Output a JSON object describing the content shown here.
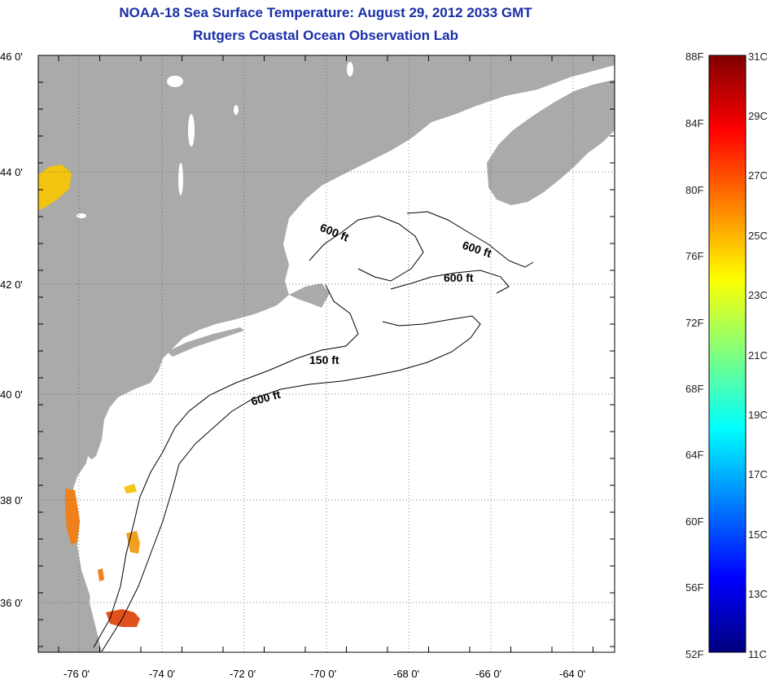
{
  "header": {
    "title": "NOAA-18 Sea Surface Temperature:  August 29, 2012 2033 GMT",
    "subtitle": "Rutgers Coastal Ocean Observation Lab"
  },
  "map": {
    "lat_ticks": [
      "46 0'",
      "44 0'",
      "42 0'",
      "40 0'",
      "38 0'",
      "36 0'"
    ],
    "lon_ticks": [
      "-76 0'",
      "-74 0'",
      "-72 0'",
      "-70 0'",
      "-68 0'",
      "-66 0'",
      "-64 0'"
    ],
    "contour_labels": [
      "600 ft",
      "600 ft",
      "600 ft",
      "150 ft",
      "600 ft"
    ],
    "colors": {
      "land": "#aaaaaa",
      "water": "#ffffff",
      "contour": "#000000",
      "grid": "#555555"
    }
  },
  "colorbar": {
    "fahrenheit": [
      "88F",
      "84F",
      "80F",
      "76F",
      "72F",
      "68F",
      "64F",
      "60F",
      "56F",
      "52F"
    ],
    "celsius": [
      "31C",
      "29C",
      "27C",
      "25C",
      "23C",
      "21C",
      "19C",
      "17C",
      "15C",
      "13C",
      "11C"
    ],
    "gradient": [
      "#00007f",
      "#0000ff",
      "#007fff",
      "#00ffff",
      "#7fff7f",
      "#ffff00",
      "#ff7f00",
      "#ff0000",
      "#7f0000"
    ]
  }
}
